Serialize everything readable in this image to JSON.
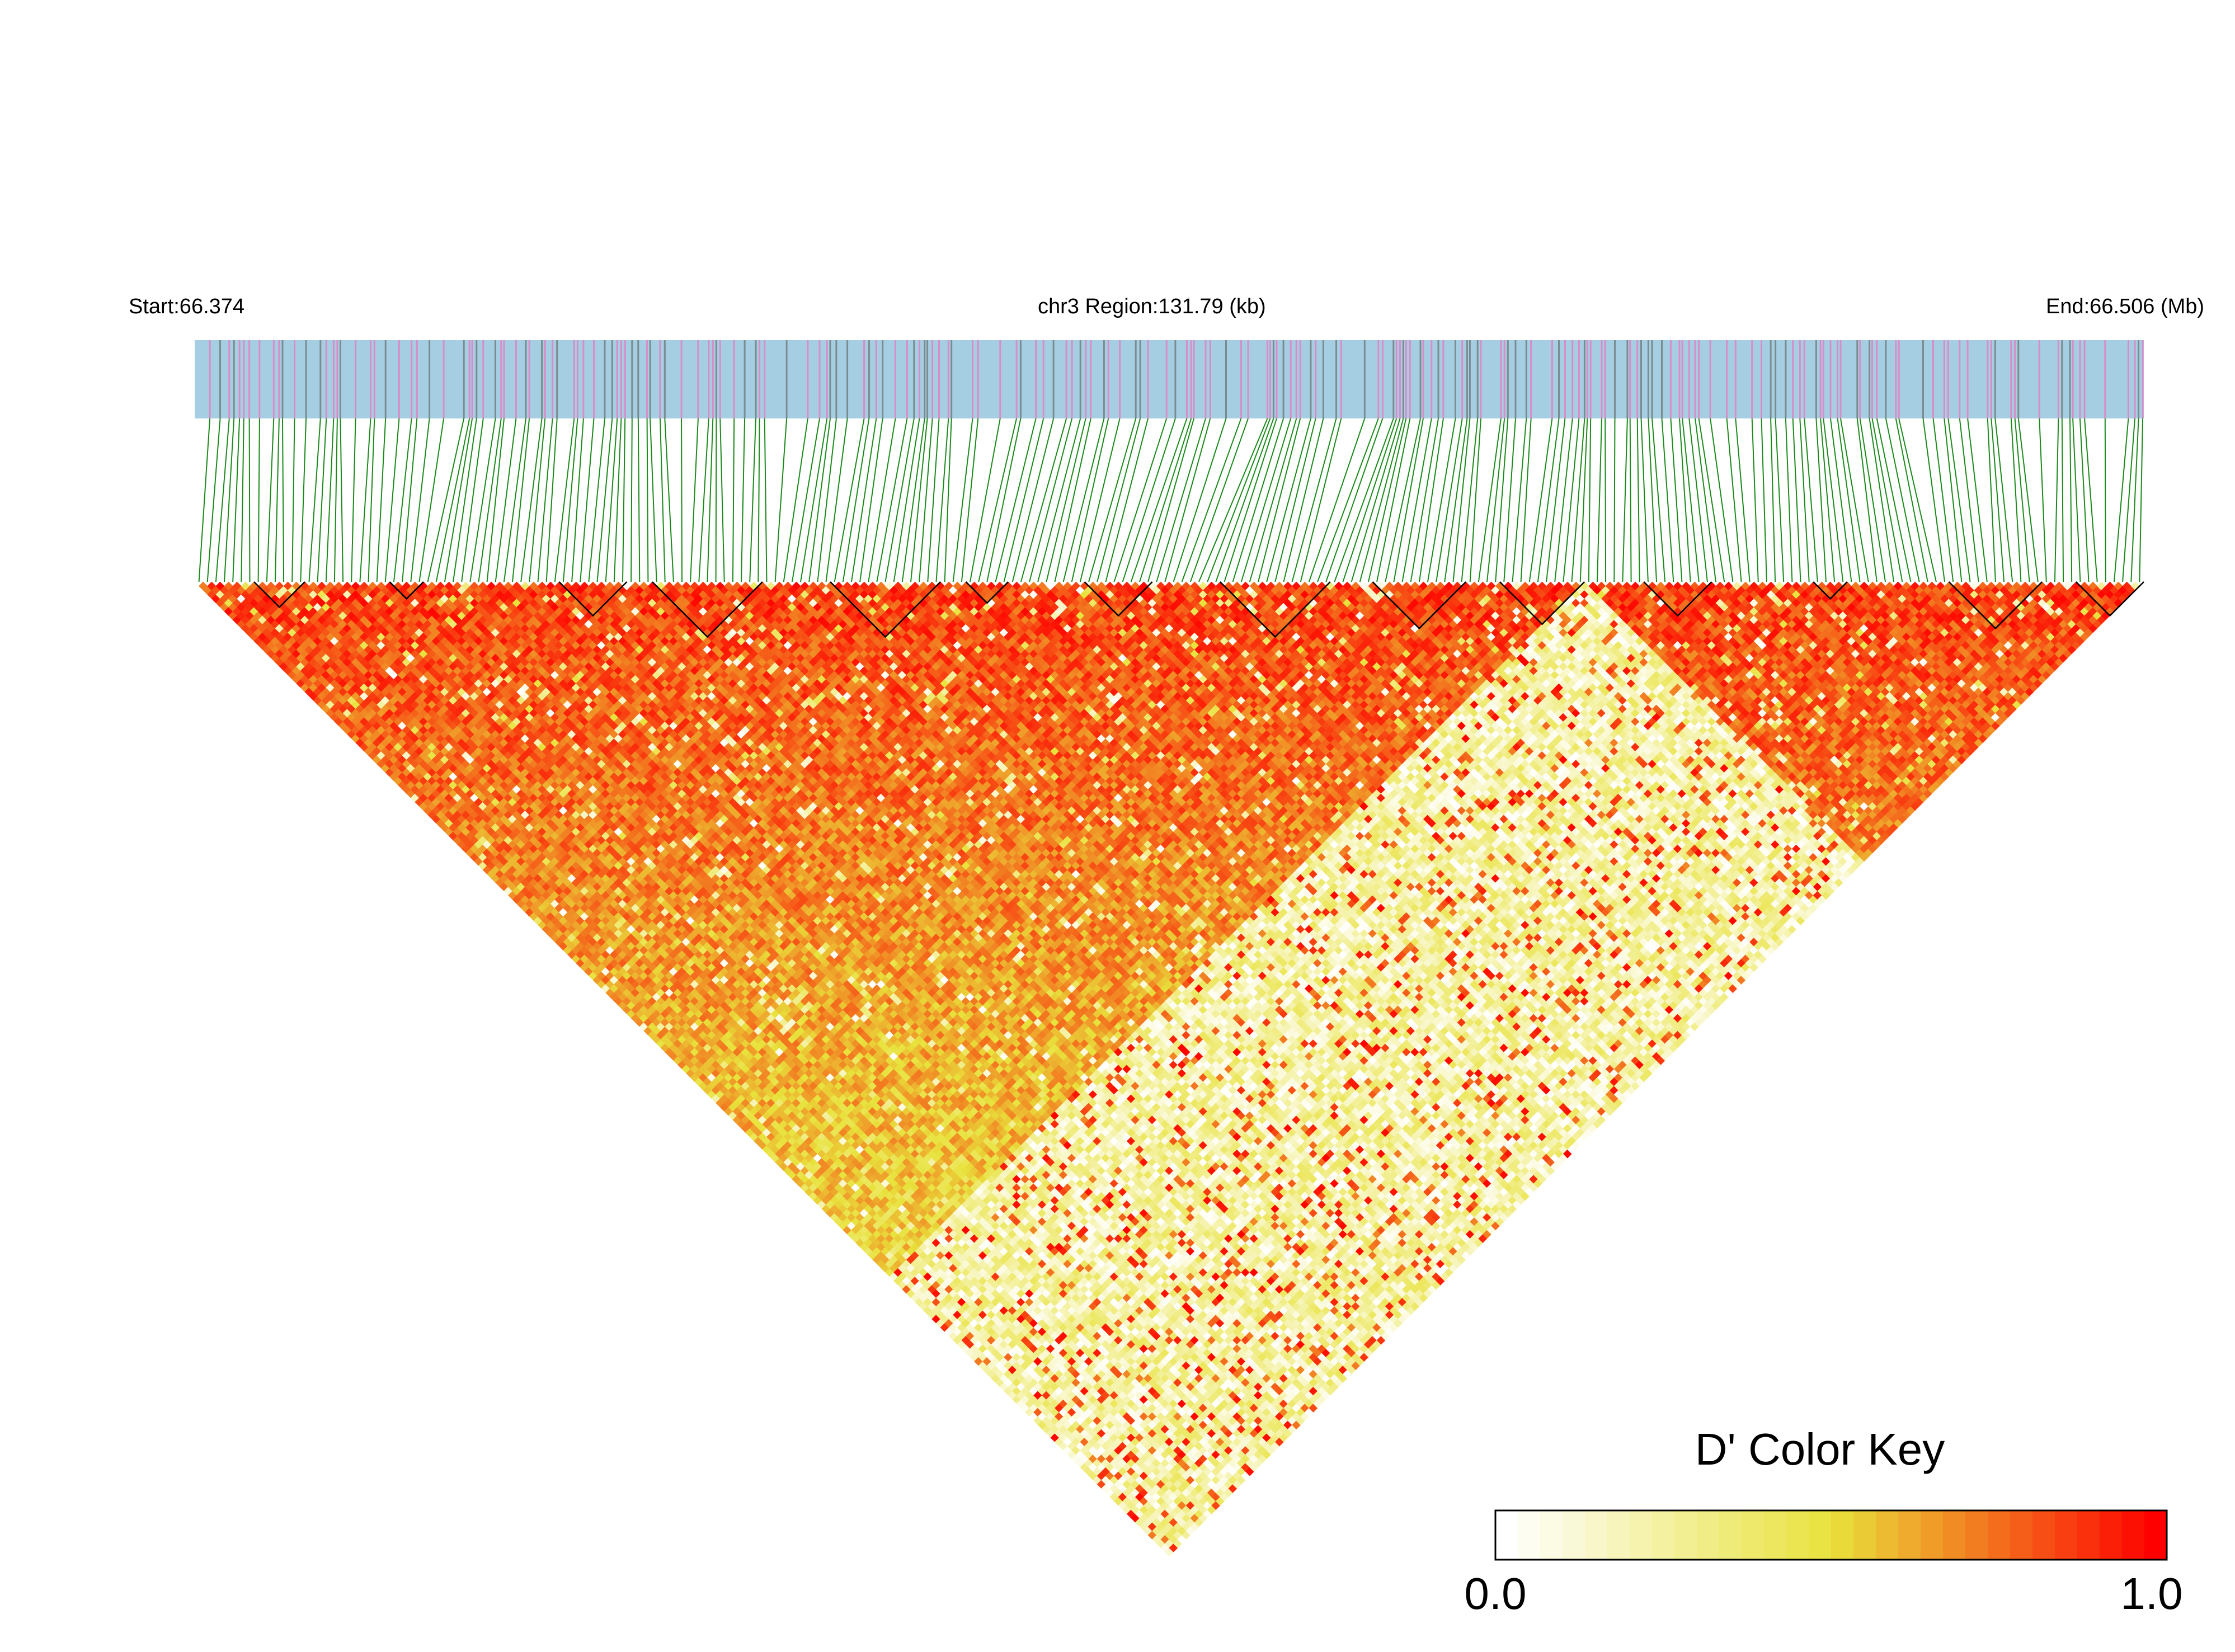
{
  "header": {
    "start_label": "Start:66.374",
    "region_label": "chr3 Region:131.79 (kb)",
    "end_label": "End:66.506 (Mb)"
  },
  "colors": {
    "track_background": "#a6cee3",
    "snp_mark_pink": "#d98cc8",
    "snp_mark_gray": "#7a8c8f",
    "connector_green": "#1a8a1a",
    "block_outline": "#000000",
    "ld_low": "#ffffff",
    "ld_mid": "#e8e23c",
    "ld_high": "#ff0000"
  },
  "color_key": {
    "title": "D' Color Key",
    "min_label": "0.0",
    "max_label": "1.0",
    "min": 0.0,
    "max": 1.0
  },
  "chart_data": {
    "type": "heatmap",
    "chromosome": "chr3",
    "start_mb": 66.374,
    "end_mb": 66.506,
    "region_kb": 131.79,
    "metric": "D'",
    "value_range": [
      0.0,
      1.0
    ],
    "snp_count_approx": 230,
    "ld_summary": "Pairwise D' shown as a downward triangle. Strong LD (D' near 1.0, red/orange) dominates the upper-left region and a band along the upper-right; a large low-LD region (D' mostly 0.0-0.4, pale yellow/white) spans the lower-right interior and the bottom apex, consistent with a recombination boundary roughly 70% along the region.",
    "ld_blocks_approx": 14
  }
}
